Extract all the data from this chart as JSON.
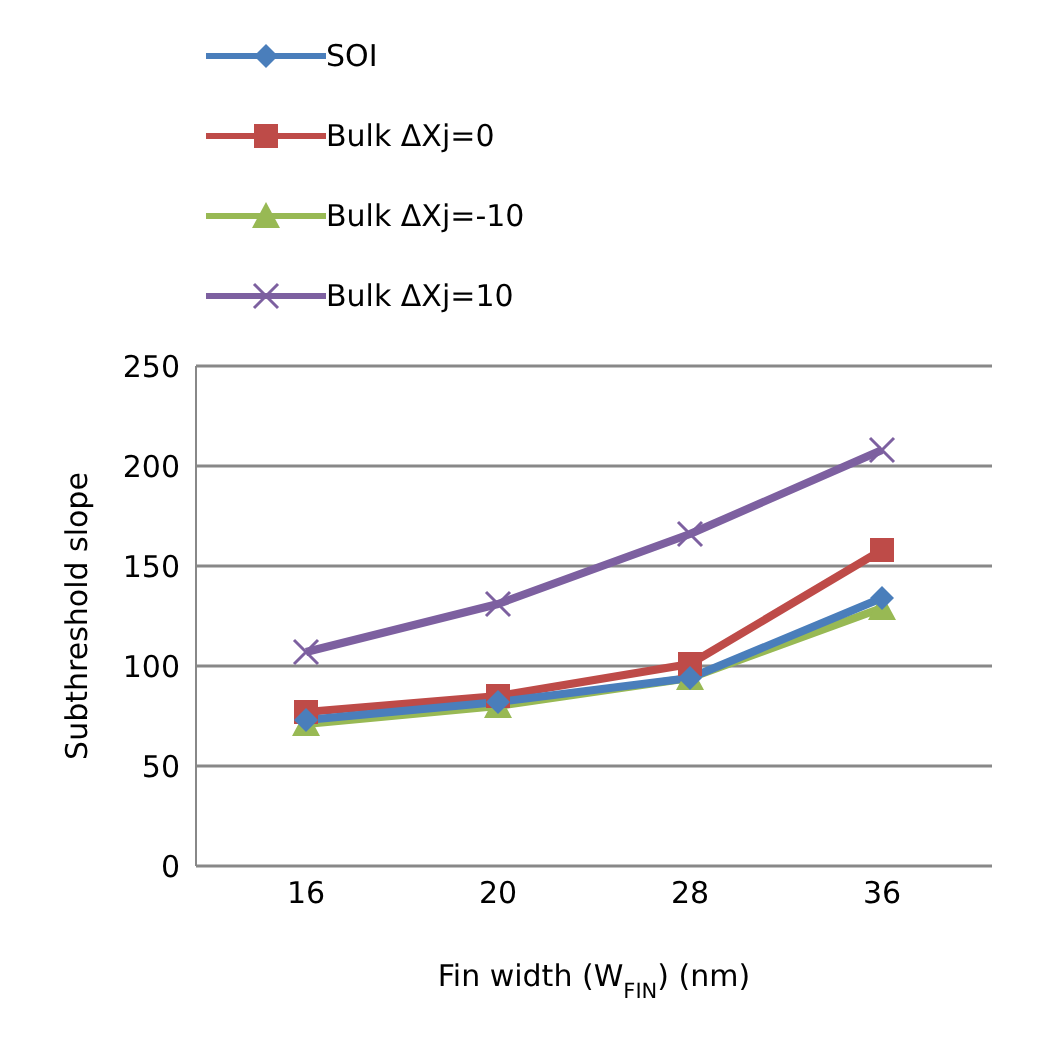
{
  "chart_data": {
    "type": "line",
    "categories": [
      "16",
      "20",
      "28",
      "36"
    ],
    "xlabel": "Fin width (W$_{FIN}$) (nm)",
    "ylabel": "Subthreshold slope",
    "ylim": [
      0,
      250
    ],
    "yticks": [
      0,
      50,
      100,
      150,
      200,
      250
    ],
    "grid": "y",
    "legend": "top left",
    "series": [
      {
        "name": "SOI",
        "color": "#4a7ebb",
        "marker": "diamond",
        "values": [
          73,
          82,
          94,
          134
        ]
      },
      {
        "name": "Bulk ΔXj=0",
        "color": "#be4b48",
        "marker": "square",
        "values": [
          77,
          85,
          101,
          158
        ]
      },
      {
        "name": "Bulk ΔXj=-10",
        "color": "#98b954",
        "marker": "triangle",
        "values": [
          71,
          80,
          94,
          129
        ]
      },
      {
        "name": "Bulk ΔXj=10",
        "color": "#7d60a0",
        "marker": "cross",
        "values": [
          107,
          131,
          166,
          208
        ]
      }
    ]
  }
}
